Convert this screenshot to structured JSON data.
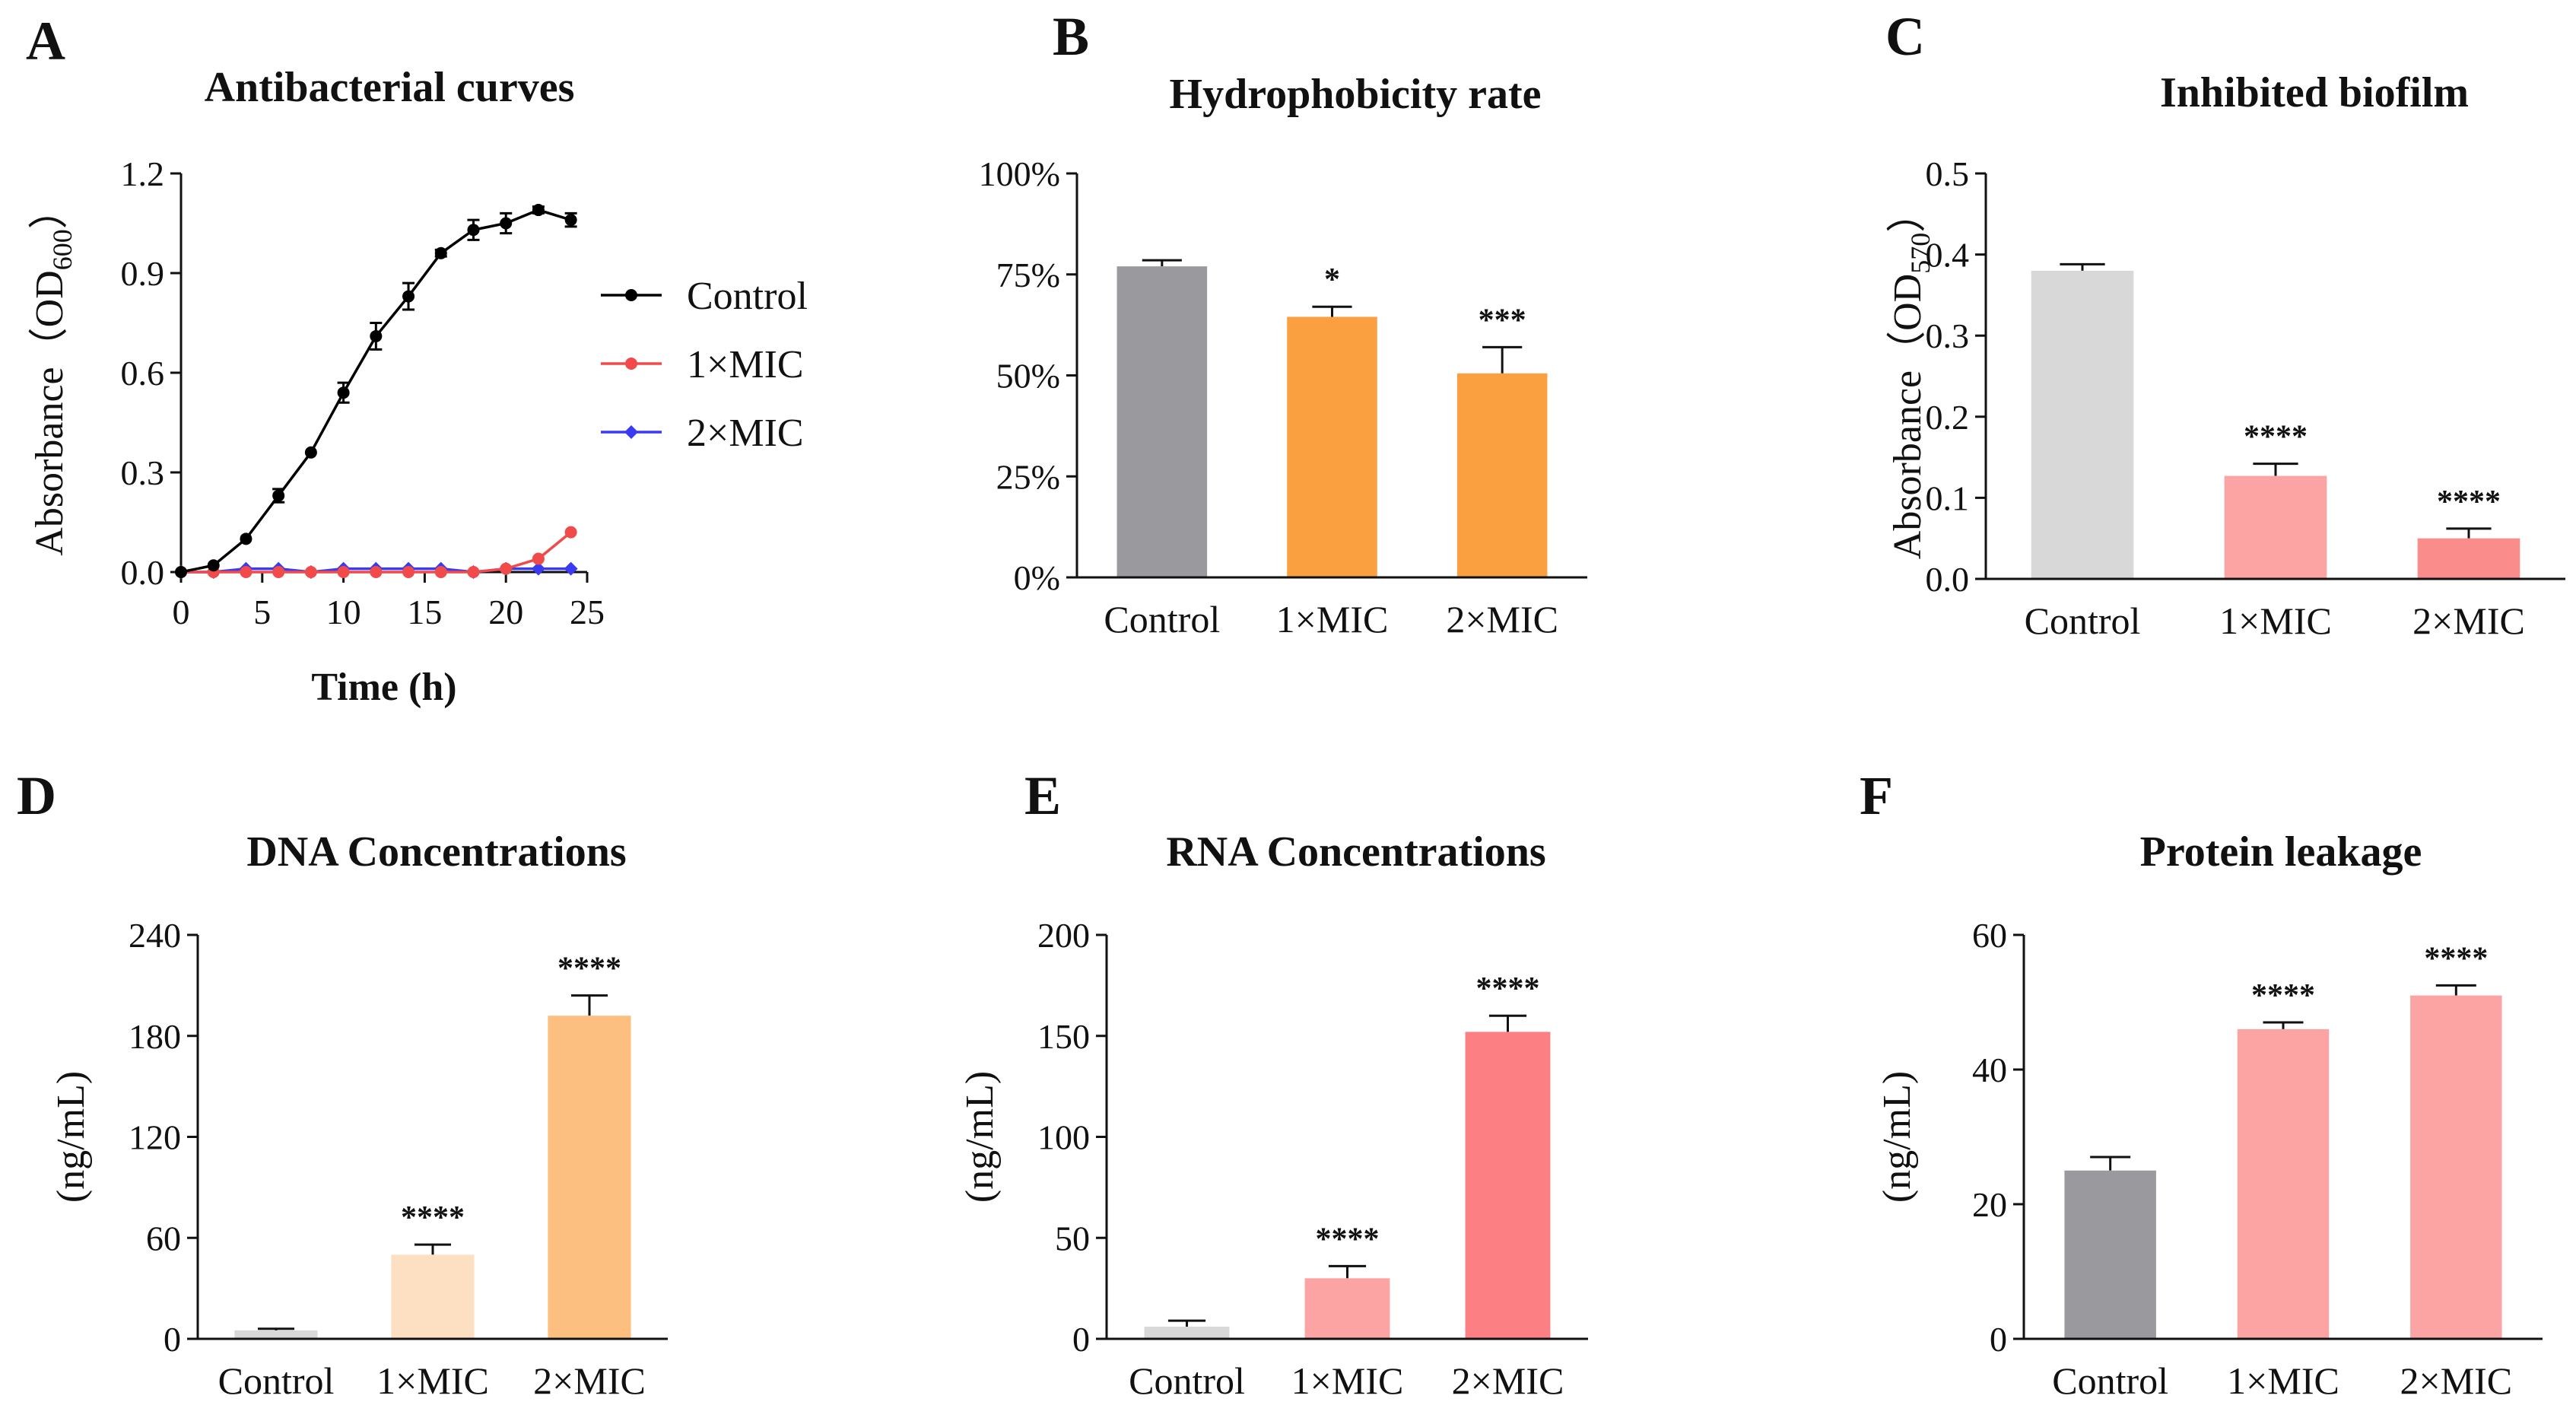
{
  "colors": {
    "control": "#000000",
    "mic1": "#f04a4a",
    "mic2": "#3a3af0",
    "gray": "#9a999e",
    "light_gray": "#d8d8d8",
    "orange": "#fba040",
    "peach_light": "#fde0c2",
    "peach": "#fdbf80",
    "pink": "#fca4a4",
    "pink_dark": "#fc7f84",
    "pink_mid": "#fb8c8c"
  },
  "chart_data": [
    {
      "id": "A",
      "panel": "A",
      "type": "line",
      "title": "Antibacterial curves",
      "xlabel": "Time (h)",
      "ylabel": "Absorbance（OD",
      "ylabel_sub": "600",
      "ylabel_close": "）",
      "xlim": [
        0,
        25
      ],
      "ylim": [
        0,
        1.2
      ],
      "xticks": [
        0,
        5,
        10,
        15,
        20,
        25
      ],
      "xtick_labels": [
        "0",
        "5",
        "10",
        "15",
        "20",
        "25"
      ],
      "yticks": [
        0,
        0.3,
        0.6,
        0.9,
        1.2
      ],
      "ytick_labels": [
        "0.0",
        "0.3",
        "0.6",
        "0.9",
        "1.2"
      ],
      "legend_position": "right",
      "series": [
        {
          "name": "Control",
          "color": "#000000",
          "marker": "circle",
          "x": [
            0,
            2,
            4,
            6,
            8,
            10,
            12,
            14,
            16,
            18,
            20,
            22,
            24
          ],
          "y": [
            0.0,
            0.02,
            0.1,
            0.23,
            0.36,
            0.54,
            0.71,
            0.83,
            0.96,
            1.03,
            1.05,
            1.09,
            1.06
          ],
          "err": [
            0,
            0,
            0,
            0.02,
            0,
            0.03,
            0.04,
            0.04,
            0.01,
            0.03,
            0.03,
            0.01,
            0.02
          ]
        },
        {
          "name": "1×MIC",
          "color": "#f04a4a",
          "marker": "circle",
          "x": [
            0,
            2,
            4,
            6,
            8,
            10,
            12,
            14,
            16,
            18,
            20,
            22,
            24
          ],
          "y": [
            0.0,
            0.0,
            0.0,
            0.0,
            0.0,
            0.0,
            0.0,
            0.0,
            0.0,
            0.0,
            0.01,
            0.04,
            0.12
          ],
          "err": [
            0,
            0,
            0,
            0,
            0,
            0,
            0,
            0,
            0,
            0,
            0,
            0,
            0
          ]
        },
        {
          "name": "2×MIC",
          "color": "#3a3af0",
          "marker": "diamond",
          "x": [
            0,
            2,
            4,
            6,
            8,
            10,
            12,
            14,
            16,
            18,
            20,
            22,
            24
          ],
          "y": [
            0.0,
            0.0,
            0.01,
            0.01,
            0.0,
            0.01,
            0.01,
            0.01,
            0.01,
            0.0,
            0.01,
            0.01,
            0.01
          ],
          "err": [
            0,
            0,
            0,
            0,
            0,
            0,
            0,
            0,
            0,
            0,
            0,
            0,
            0
          ]
        }
      ]
    },
    {
      "id": "B",
      "panel": "B",
      "type": "bar",
      "title": "Hydrophobicity rate",
      "ylabel": "",
      "ylim": [
        0,
        100
      ],
      "yticks": [
        0,
        25,
        50,
        75,
        100
      ],
      "ytick_labels": [
        "0%",
        "25%",
        "50%",
        "75%",
        "100%"
      ],
      "categories": [
        "Control",
        "1×MIC",
        "2×MIC"
      ],
      "values": [
        77,
        64.5,
        50.5
      ],
      "errors": [
        1.5,
        2.5,
        6.5
      ],
      "significance": [
        "",
        "*",
        "***"
      ],
      "bar_colors": [
        "#9a999e",
        "#fba040",
        "#fba040"
      ]
    },
    {
      "id": "C",
      "panel": "C",
      "type": "bar",
      "title": "Inhibited biofilm",
      "ylabel": "Absorbance（OD",
      "ylabel_sub": "570",
      "ylabel_close": "）",
      "ylim": [
        0,
        0.5
      ],
      "yticks": [
        0,
        0.1,
        0.2,
        0.3,
        0.4,
        0.5
      ],
      "ytick_labels": [
        "0.0",
        "0.1",
        "0.2",
        "0.3",
        "0.4",
        "0.5"
      ],
      "categories": [
        "Control",
        "1×MIC",
        "2×MIC"
      ],
      "values": [
        0.38,
        0.127,
        0.05
      ],
      "errors": [
        0.008,
        0.015,
        0.012
      ],
      "significance": [
        "",
        "****",
        "****"
      ],
      "bar_colors": [
        "#d8d8d8",
        "#fca4a4",
        "#fb8c8c"
      ]
    },
    {
      "id": "D",
      "panel": "D",
      "type": "bar",
      "title": "DNA Concentrations",
      "ylabel": "(ng/mL)",
      "ylim": [
        0,
        240
      ],
      "yticks": [
        0,
        60,
        120,
        180,
        240
      ],
      "ytick_labels": [
        "0",
        "60",
        "120",
        "180",
        "240"
      ],
      "categories": [
        "Control",
        "1×MIC",
        "2×MIC"
      ],
      "values": [
        5,
        50,
        192
      ],
      "errors": [
        1,
        6,
        12
      ],
      "significance": [
        "",
        "****",
        "****"
      ],
      "bar_colors": [
        "#d8d8d8",
        "#fde0c2",
        "#fdbf80"
      ]
    },
    {
      "id": "E",
      "panel": "E",
      "type": "bar",
      "title": "RNA Concentrations",
      "ylabel": "(ng/mL)",
      "ylim": [
        0,
        200
      ],
      "yticks": [
        0,
        50,
        100,
        150,
        200
      ],
      "ytick_labels": [
        "0",
        "50",
        "100",
        "150",
        "200"
      ],
      "categories": [
        "Control",
        "1×MIC",
        "2×MIC"
      ],
      "values": [
        6,
        30,
        152
      ],
      "errors": [
        3,
        6,
        8
      ],
      "significance": [
        "",
        "****",
        "****"
      ],
      "bar_colors": [
        "#d8d8d8",
        "#fca4a4",
        "#fc7f84"
      ]
    },
    {
      "id": "F",
      "panel": "F",
      "type": "bar",
      "title": "Protein leakage",
      "ylabel": "(ng/mL)",
      "ylim": [
        0,
        60
      ],
      "yticks": [
        0,
        20,
        40,
        60
      ],
      "ytick_labels": [
        "0",
        "20",
        "40",
        "60"
      ],
      "categories": [
        "Control",
        "1×MIC",
        "2×MIC"
      ],
      "values": [
        25,
        46,
        51
      ],
      "errors": [
        2,
        1,
        1.5
      ],
      "significance": [
        "",
        "****",
        "****"
      ],
      "bar_colors": [
        "#9a999e",
        "#fca4a4",
        "#fca4a4"
      ]
    }
  ]
}
